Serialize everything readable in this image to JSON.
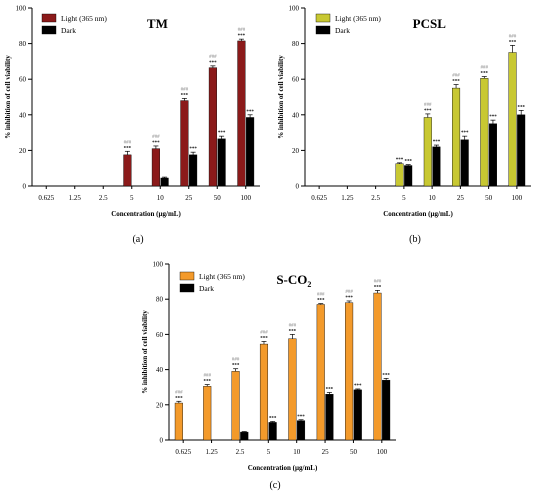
{
  "colors": {
    "tm_light": "#8B1A1A",
    "pcsl_light": "#C8C832",
    "sco2_light": "#F39A2B",
    "dark": "#000000",
    "annot": "#7F7F7F"
  },
  "chart_data": [
    {
      "type": "bar",
      "title": "TM",
      "panel_label": "(a)",
      "xlabel": "Concentration (µg/mL)",
      "ylabel": "% inhibition of cell viability",
      "ylim": [
        0,
        100
      ],
      "yticks": [
        "0",
        "20",
        "40",
        "60",
        "80",
        "100"
      ],
      "categories": [
        "0.625",
        "1.25",
        "2.5",
        "5",
        "10",
        "25",
        "50",
        "100"
      ],
      "series": [
        {
          "name": "Light (365 nm)",
          "color": "#8B1A1A",
          "values": [
            null,
            null,
            null,
            17.5,
            21,
            48,
            66.5,
            81.5
          ],
          "errors": [
            0,
            0,
            0,
            2,
            1.5,
            1.2,
            1,
            1
          ],
          "annot_top": [
            "",
            "",
            "",
            "###",
            "###",
            "###",
            "###",
            "###"
          ],
          "annot_bottom": [
            "",
            "",
            "",
            "***",
            "***",
            "***",
            "***",
            "***"
          ]
        },
        {
          "name": "Dark",
          "color": "#000000",
          "values": [
            null,
            null,
            null,
            null,
            4.5,
            17.5,
            26.5,
            38.5
          ],
          "errors": [
            0,
            0,
            0,
            0,
            0.5,
            1.5,
            1.5,
            1.5
          ],
          "annot_top": [
            "",
            "",
            "",
            "",
            "",
            "",
            "",
            ""
          ],
          "annot_bottom": [
            "",
            "",
            "",
            "",
            "",
            "***",
            "***",
            "***"
          ]
        }
      ]
    },
    {
      "type": "bar",
      "title": "PCSL",
      "panel_label": "(b)",
      "xlabel": "Concentration (µg/mL)",
      "ylabel": "% inhibition of cell viability",
      "ylim": [
        0,
        100
      ],
      "yticks": [
        "0",
        "20",
        "40",
        "60",
        "80",
        "100"
      ],
      "categories": [
        "0.625",
        "1.25",
        "2.5",
        "5",
        "10",
        "25",
        "50",
        "100"
      ],
      "series": [
        {
          "name": "Light (365 nm)",
          "color": "#C8C832",
          "values": [
            null,
            null,
            null,
            12.5,
            38.5,
            55,
            60.5,
            75
          ],
          "errors": [
            0,
            0,
            0,
            0.5,
            2,
            2,
            1,
            4
          ],
          "annot_top": [
            "",
            "",
            "",
            "",
            "###",
            "###",
            "###",
            "###"
          ],
          "annot_bottom": [
            "",
            "",
            "",
            "***",
            "***",
            "***",
            "***",
            "***"
          ]
        },
        {
          "name": "Dark",
          "color": "#000000",
          "values": [
            null,
            null,
            null,
            11.5,
            22,
            26,
            35,
            40
          ],
          "errors": [
            0,
            0,
            0,
            0.5,
            1,
            2,
            2,
            2.5
          ],
          "annot_top": [
            "",
            "",
            "",
            "",
            "",
            "",
            "",
            ""
          ],
          "annot_bottom": [
            "",
            "",
            "",
            "***",
            "***",
            "***",
            "***",
            "***"
          ]
        }
      ]
    },
    {
      "type": "bar",
      "title": "S-CO",
      "title_sub": "2",
      "panel_label": "(c)",
      "xlabel": "Concentration (µg/mL)",
      "ylabel": "% inhibition of cell viability",
      "ylim": [
        0,
        100
      ],
      "yticks": [
        "0",
        "20",
        "40",
        "60",
        "80",
        "100"
      ],
      "categories": [
        "0.625",
        "1.25",
        "2.5",
        "5",
        "10",
        "25",
        "50",
        "100"
      ],
      "series": [
        {
          "name": "Light (365 nm)",
          "color": "#F39A2B",
          "values": [
            21,
            30.5,
            39,
            54.5,
            57.5,
            77,
            78,
            83.5
          ],
          "errors": [
            1,
            1,
            1.5,
            1.5,
            2.5,
            0.5,
            1,
            1.5
          ],
          "annot_top": [
            "###",
            "###",
            "###",
            "###",
            "###",
            "###",
            "###",
            "###"
          ],
          "annot_bottom": [
            "***",
            "***",
            "***",
            "***",
            "***",
            "***",
            "***",
            "***"
          ]
        },
        {
          "name": "Dark",
          "color": "#000000",
          "values": [
            null,
            null,
            4.5,
            10,
            11,
            26,
            28.5,
            34
          ],
          "errors": [
            0,
            0,
            0.3,
            0.5,
            0.5,
            1,
            0.5,
            1
          ],
          "annot_top": [
            "",
            "",
            "",
            "",
            "",
            "",
            "",
            ""
          ],
          "annot_bottom": [
            "",
            "",
            "",
            "***",
            "***",
            "***",
            "***",
            "***"
          ]
        }
      ]
    }
  ]
}
